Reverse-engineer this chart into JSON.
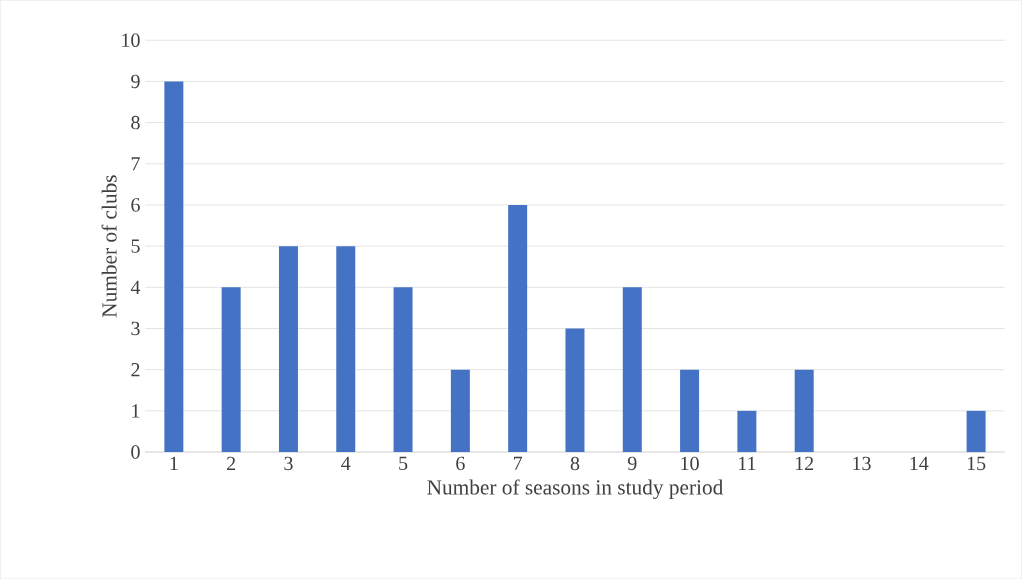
{
  "chart_data": {
    "type": "bar",
    "xlabel": "Number of seasons in study period",
    "ylabel": "Number of clubs",
    "categories": [
      "1",
      "2",
      "3",
      "4",
      "5",
      "6",
      "7",
      "8",
      "9",
      "10",
      "11",
      "12",
      "13",
      "14",
      "15"
    ],
    "values": [
      9,
      4,
      5,
      5,
      4,
      2,
      6,
      3,
      4,
      2,
      1,
      2,
      0,
      0,
      1
    ],
    "color": "#4472c4",
    "ylim": [
      0,
      10
    ],
    "yticks": [
      0,
      1,
      2,
      3,
      4,
      5,
      6,
      7,
      8,
      9,
      10
    ],
    "grid": "y"
  }
}
